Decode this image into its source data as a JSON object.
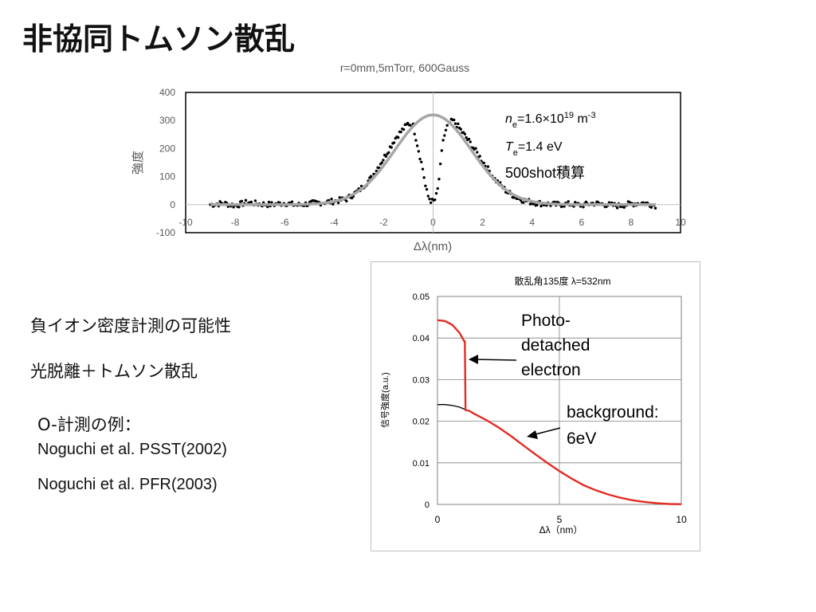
{
  "slide": {
    "title": "非協同トムソン散乱",
    "body1": "負イオン密度計測の可能性",
    "body2": "光脱離＋トムソン散乱",
    "example_label": "O-計測の例：",
    "references": [
      "Noguchi et al. PSST(2002)",
      "Noguchi et al. PFR(2003)"
    ]
  },
  "chart_data": [
    {
      "type": "scatter",
      "title": "r=0mm,5mTorr, 600Gauss",
      "xlabel": "Δλ(nm)",
      "ylabel": "強度",
      "xlim": [
        -10,
        10
      ],
      "ylim": [
        -100,
        400
      ],
      "x_ticks": [
        "-10",
        "-8",
        "-6",
        "-4",
        "-2",
        "0",
        "2",
        "4",
        "6",
        "8",
        "10"
      ],
      "y_ticks": [
        "-100",
        "0",
        "100",
        "200",
        "300",
        "400"
      ],
      "annotations": {
        "ne_sym": "n",
        "ne_sub": "e",
        "ne_val": "=1.6×10",
        "ne_exp": "19",
        "ne_unit": " m",
        "ne_unit_exp": "-3",
        "te_sym": "T",
        "te_sub": "e",
        "te_val": "=1.4 eV",
        "shots": "500shot積算"
      },
      "fit_peak": 320,
      "fit_sigma": 1.55,
      "series": [
        {
          "role": "measured",
          "x": [
            -9.0,
            -8.5,
            -8.0,
            -7.5,
            -7.0,
            -6.5,
            -6.0,
            -5.5,
            -5.0,
            -4.5,
            -4.0,
            -3.5,
            -3.0,
            -2.5,
            -2.0,
            -1.5,
            -1.0,
            -0.8,
            -0.6,
            -0.4,
            -0.3,
            -0.2,
            -0.1,
            0.0,
            0.1,
            0.2,
            0.3,
            0.4,
            0.6,
            0.8,
            1.0,
            1.5,
            2.0,
            2.5,
            3.0,
            3.5,
            4.0,
            4.5,
            5.0,
            5.5,
            6.0,
            6.5,
            7.0,
            7.5,
            8.0,
            8.5,
            9.0
          ],
          "y": [
            0,
            5,
            -3,
            8,
            2,
            0,
            6,
            -2,
            4,
            8,
            12,
            20,
            50,
            95,
            165,
            240,
            290,
            280,
            200,
            120,
            60,
            30,
            15,
            10,
            20,
            60,
            140,
            230,
            285,
            300,
            280,
            220,
            155,
            90,
            45,
            20,
            8,
            3,
            0,
            2,
            -2,
            5,
            0,
            -4,
            3,
            6,
            -3
          ]
        }
      ]
    },
    {
      "type": "line",
      "title": "散乱角135度 λ=532nm",
      "xlabel": "Δλ（nm）",
      "ylabel": "信号強度(a.u.)",
      "xlim": [
        0,
        10
      ],
      "ylim": [
        0,
        0.05
      ],
      "x_ticks": [
        "0",
        "5",
        "10"
      ],
      "y_ticks": [
        "0",
        "0.01",
        "0.02",
        "0.03",
        "0.04",
        "0.05"
      ],
      "colors": {
        "photodetached": "#e32b23",
        "background": "#000000"
      },
      "series": [
        {
          "role": "photodetached",
          "x": [
            0,
            0.3,
            0.6,
            0.9,
            1.1,
            1.12,
            1.15,
            1.3,
            1.5,
            2,
            2.5,
            3,
            3.5,
            4,
            4.5,
            5,
            5.5,
            6,
            6.5,
            7,
            7.5,
            8,
            8.5,
            9,
            9.5,
            10
          ],
          "y": [
            0.0443,
            0.0441,
            0.0432,
            0.0413,
            0.0392,
            0.0392,
            0.0227,
            0.0225,
            0.0218,
            0.0203,
            0.0185,
            0.0165,
            0.0143,
            0.0121,
            0.01,
            0.008,
            0.0062,
            0.0046,
            0.0034,
            0.0024,
            0.0016,
            0.001,
            0.0006,
            0.0003,
            0.0001,
            5e-05
          ]
        },
        {
          "role": "background",
          "x": [
            0,
            0.3,
            0.6,
            0.9,
            1.15
          ],
          "y": [
            0.024,
            0.024,
            0.0238,
            0.0234,
            0.0228
          ]
        }
      ],
      "annotations": {
        "photo": [
          "Photo-",
          "detached",
          "electron"
        ],
        "bg": [
          "background:",
          "6eV"
        ]
      }
    }
  ]
}
